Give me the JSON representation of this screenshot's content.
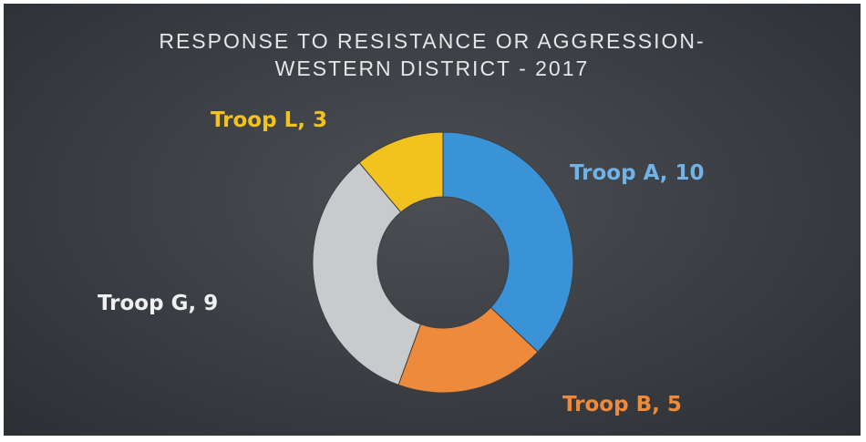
{
  "chart_data": {
    "type": "pie",
    "variant": "donut",
    "title_lines": [
      "RESPONSE TO RESISTANCE OR AGGRESSION-",
      "WESTERN DISTRICT - 2017"
    ],
    "categories": [
      "Troop A",
      "Troop B",
      "Troop G",
      "Troop L"
    ],
    "values": [
      10,
      5,
      9,
      3
    ],
    "labels": [
      "Troop A, 10",
      "Troop B, 5",
      "Troop G, 9",
      "Troop L, 3"
    ],
    "colors": [
      "#3a93d6",
      "#ee8a3c",
      "#c9cacb",
      "#f2c21f"
    ],
    "label_colors": [
      "#6fb3e8",
      "#ee8a3c",
      "#f0f0f0",
      "#f2c21f"
    ],
    "legend": "none",
    "background": "#3c3f44"
  }
}
